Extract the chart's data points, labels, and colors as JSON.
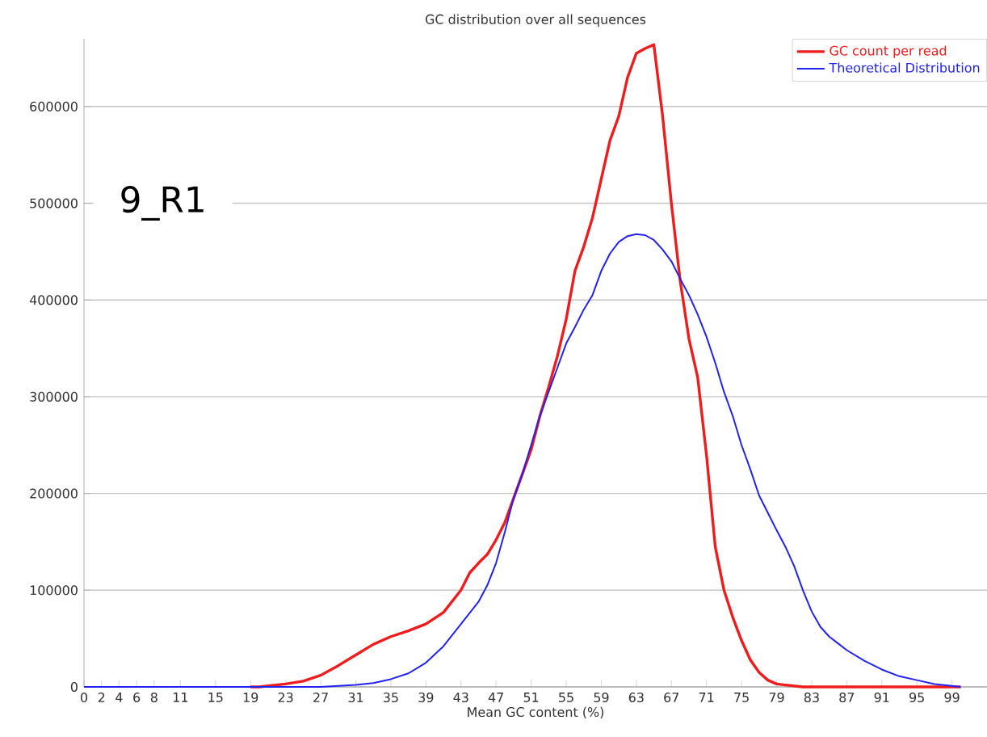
{
  "chart_data": {
    "type": "line",
    "title": "GC distribution over all sequences",
    "xlabel": "Mean GC content (%)",
    "annotations": [
      "9_R1"
    ],
    "xlim": [
      0,
      103
    ],
    "ylim": [
      0,
      670000
    ],
    "xticks": [
      0,
      2,
      4,
      6,
      8,
      11,
      15,
      19,
      23,
      27,
      31,
      35,
      39,
      43,
      47,
      51,
      55,
      59,
      63,
      67,
      71,
      75,
      79,
      83,
      87,
      91,
      95,
      99
    ],
    "yticks": [
      0,
      100000,
      200000,
      300000,
      400000,
      500000,
      600000
    ],
    "grid": "y",
    "legend": "top right",
    "marker": "none",
    "line_style": "solid",
    "series": [
      {
        "name": "GC count per read",
        "color": "#ee1c1c",
        "x": [
          19,
          20,
          21,
          23,
          25,
          27,
          29,
          31,
          33,
          35,
          37,
          39,
          41,
          43,
          44,
          45,
          46,
          47,
          48,
          49,
          50,
          51,
          52,
          53,
          54,
          55,
          56,
          57,
          58,
          59,
          60,
          61,
          62,
          63,
          64,
          65,
          66,
          67,
          68,
          69,
          70,
          71,
          72,
          73,
          74,
          75,
          76,
          77,
          78,
          79,
          80,
          82,
          85,
          90,
          95,
          100
        ],
        "values": [
          0,
          0,
          1000,
          3000,
          6000,
          12000,
          22000,
          33000,
          44000,
          52000,
          58000,
          65000,
          77000,
          100000,
          118000,
          128000,
          137000,
          152000,
          170000,
          195000,
          220000,
          245000,
          280000,
          310000,
          342000,
          380000,
          430000,
          455000,
          485000,
          525000,
          565000,
          590000,
          630000,
          655000,
          660000,
          664000,
          590000,
          500000,
          420000,
          360000,
          320000,
          240000,
          145000,
          100000,
          72000,
          48000,
          28000,
          15000,
          7000,
          3000,
          2000,
          0,
          0,
          0,
          0,
          0
        ]
      },
      {
        "name": "Theoretical Distribution",
        "color": "#2222ee",
        "x": [
          0,
          10,
          20,
          25,
          27,
          29,
          31,
          33,
          35,
          37,
          39,
          41,
          43,
          45,
          46,
          47,
          48,
          49,
          50,
          51,
          52,
          53,
          54,
          55,
          56,
          57,
          58,
          59,
          60,
          61,
          62,
          63,
          64,
          65,
          66,
          67,
          68,
          69,
          70,
          71,
          72,
          73,
          74,
          75,
          76,
          77,
          78,
          79,
          80,
          81,
          82,
          83,
          84,
          85,
          86,
          87,
          89,
          91,
          93,
          95,
          97,
          99,
          100
        ],
        "values": [
          0,
          0,
          0,
          0,
          0,
          1000,
          2000,
          4000,
          8000,
          14000,
          25000,
          42000,
          65000,
          88000,
          105000,
          128000,
          160000,
          195000,
          220000,
          250000,
          280000,
          305000,
          330000,
          355000,
          372000,
          390000,
          405000,
          430000,
          448000,
          460000,
          466000,
          468000,
          467000,
          462000,
          452000,
          440000,
          422000,
          405000,
          385000,
          362000,
          335000,
          305000,
          280000,
          250000,
          225000,
          198000,
          180000,
          162000,
          145000,
          125000,
          100000,
          78000,
          62000,
          52000,
          45000,
          38000,
          27000,
          18000,
          11000,
          7000,
          3000,
          1000,
          0
        ]
      }
    ]
  }
}
